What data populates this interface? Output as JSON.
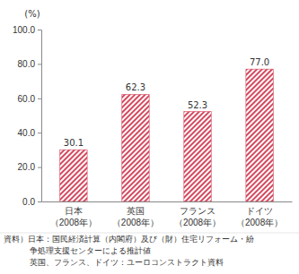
{
  "chart_data": {
    "type": "bar",
    "y_label": "(%)",
    "categories": [
      "日本\n（2008年）",
      "英国\n（2008年）",
      "フランス\n（2008年）",
      "ドイツ\n（2008年）"
    ],
    "values": [
      30.1,
      62.3,
      52.3,
      77.0
    ],
    "value_labels": [
      "30.1",
      "62.3",
      "52.3",
      "77.0"
    ],
    "data_labels": true,
    "color": "#d4495f",
    "ylim": [
      0,
      100
    ],
    "yticks": [
      {
        "value": 0,
        "label": "0.0"
      },
      {
        "value": 20,
        "label": "20.0"
      },
      {
        "value": 40,
        "label": "40.0"
      },
      {
        "value": 60,
        "label": "60.0"
      },
      {
        "value": 80,
        "label": "80.0"
      },
      {
        "value": 100,
        "label": "100.0"
      }
    ],
    "grid": false,
    "source": [
      "資料）日本：国民経済計算（内閣府）及び（財）住宅リフォーム・紛",
      "争処理支援センターによる推計値",
      "英国、フランス、ドイツ：ユーロコンストラクト資料"
    ]
  }
}
